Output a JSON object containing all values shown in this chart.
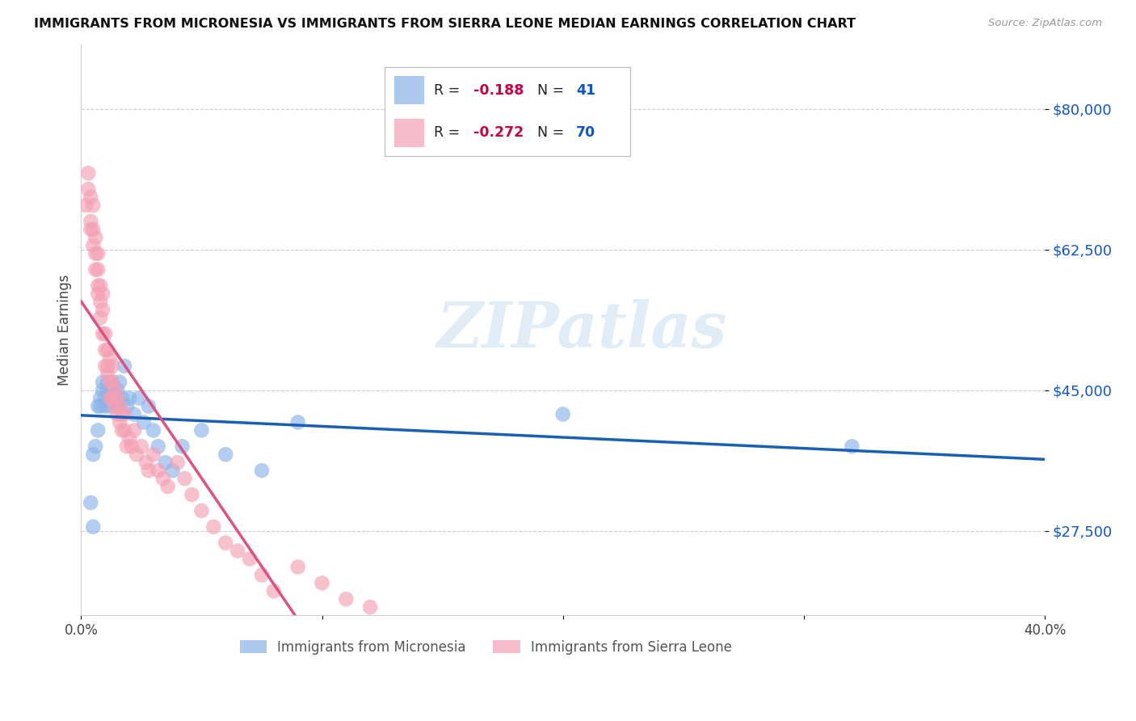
{
  "title": "IMMIGRANTS FROM MICRONESIA VS IMMIGRANTS FROM SIERRA LEONE MEDIAN EARNINGS CORRELATION CHART",
  "source": "Source: ZipAtlas.com",
  "ylabel": "Median Earnings",
  "xlim": [
    0.0,
    0.4
  ],
  "ylim": [
    17000,
    88000
  ],
  "yticks": [
    27500,
    45000,
    62500,
    80000
  ],
  "ytick_labels": [
    "$27,500",
    "$45,000",
    "$62,500",
    "$80,000"
  ],
  "xticks": [
    0.0,
    0.1,
    0.2,
    0.3,
    0.4
  ],
  "xtick_labels": [
    "0.0%",
    "",
    "",
    "",
    "40.0%"
  ],
  "R_micro": -0.188,
  "N_micro": 41,
  "R_sierra": -0.272,
  "N_sierra": 70,
  "micro_color": "#8ab4e8",
  "sierra_color": "#f4a0b5",
  "micro_line_color": "#1a5fb4",
  "sierra_line_color": "#e05080",
  "watermark_text": "ZIPatlas",
  "background_color": "#ffffff",
  "grid_color": "#cccccc",
  "legend_R_color": "#cc0044",
  "legend_N_color": "#1155cc",
  "micro_x": [
    0.004,
    0.005,
    0.005,
    0.006,
    0.007,
    0.007,
    0.008,
    0.008,
    0.009,
    0.009,
    0.01,
    0.01,
    0.011,
    0.011,
    0.012,
    0.012,
    0.013,
    0.013,
    0.014,
    0.015,
    0.015,
    0.016,
    0.017,
    0.018,
    0.019,
    0.02,
    0.022,
    0.024,
    0.026,
    0.028,
    0.03,
    0.032,
    0.035,
    0.038,
    0.042,
    0.05,
    0.06,
    0.075,
    0.09,
    0.2,
    0.32
  ],
  "micro_y": [
    31000,
    37000,
    28000,
    38000,
    40000,
    43000,
    44000,
    43000,
    45000,
    46000,
    43000,
    44000,
    46000,
    45000,
    44000,
    43000,
    45000,
    46000,
    44000,
    43000,
    45000,
    46000,
    44000,
    48000,
    43000,
    44000,
    42000,
    44000,
    41000,
    43000,
    40000,
    38000,
    36000,
    35000,
    38000,
    40000,
    37000,
    35000,
    41000,
    42000,
    38000
  ],
  "sierra_x": [
    0.002,
    0.003,
    0.003,
    0.004,
    0.004,
    0.004,
    0.005,
    0.005,
    0.005,
    0.006,
    0.006,
    0.006,
    0.007,
    0.007,
    0.007,
    0.007,
    0.008,
    0.008,
    0.008,
    0.009,
    0.009,
    0.009,
    0.01,
    0.01,
    0.01,
    0.011,
    0.011,
    0.011,
    0.012,
    0.012,
    0.012,
    0.013,
    0.013,
    0.013,
    0.014,
    0.014,
    0.015,
    0.015,
    0.016,
    0.016,
    0.017,
    0.017,
    0.018,
    0.018,
    0.019,
    0.02,
    0.021,
    0.022,
    0.023,
    0.025,
    0.027,
    0.028,
    0.03,
    0.032,
    0.034,
    0.036,
    0.04,
    0.043,
    0.046,
    0.05,
    0.055,
    0.06,
    0.065,
    0.07,
    0.075,
    0.08,
    0.09,
    0.1,
    0.11,
    0.12
  ],
  "sierra_y": [
    68000,
    72000,
    70000,
    66000,
    69000,
    65000,
    63000,
    68000,
    65000,
    62000,
    60000,
    64000,
    58000,
    60000,
    62000,
    57000,
    56000,
    58000,
    54000,
    55000,
    52000,
    57000,
    50000,
    48000,
    52000,
    48000,
    50000,
    47000,
    46000,
    49000,
    44000,
    46000,
    44000,
    48000,
    45000,
    43000,
    44000,
    42000,
    43000,
    41000,
    42000,
    40000,
    42000,
    40000,
    38000,
    39000,
    38000,
    40000,
    37000,
    38000,
    36000,
    35000,
    37000,
    35000,
    34000,
    33000,
    36000,
    34000,
    32000,
    30000,
    28000,
    26000,
    25000,
    24000,
    22000,
    20000,
    23000,
    21000,
    19000,
    18000
  ]
}
